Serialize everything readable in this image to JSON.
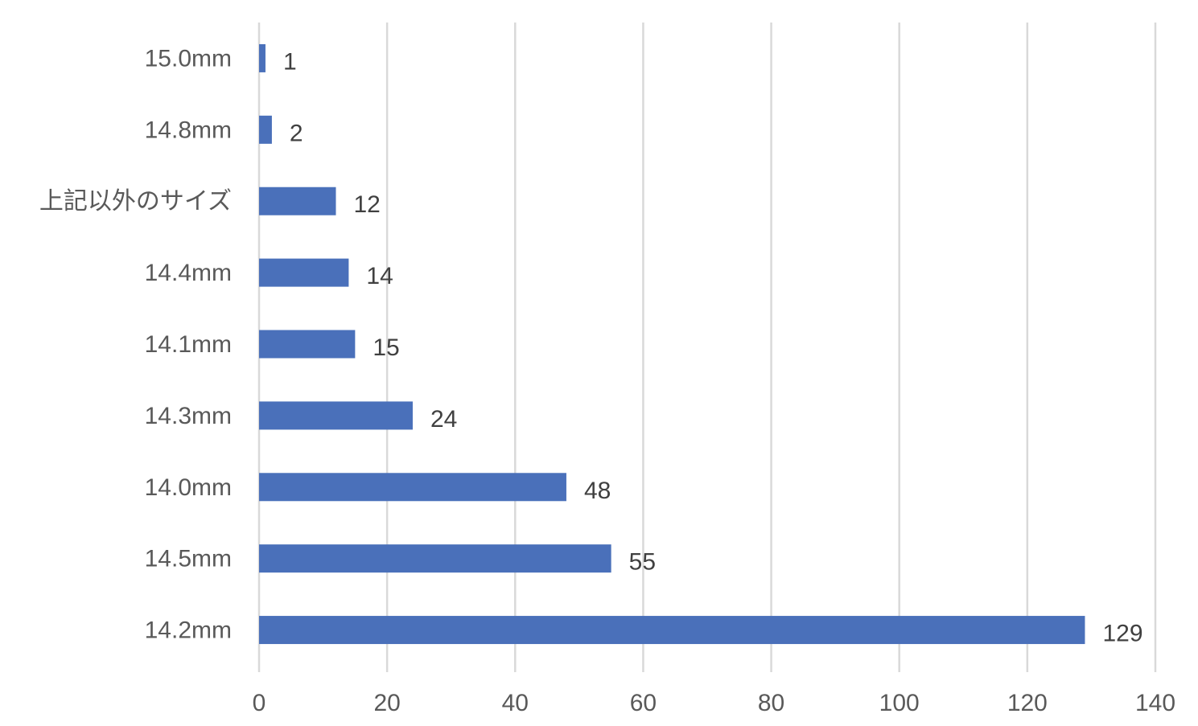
{
  "chart_data": {
    "type": "bar",
    "orientation": "horizontal",
    "title": "",
    "xlabel": "",
    "ylabel": "",
    "categories": [
      "14.2mm",
      "14.5mm",
      "14.0mm",
      "14.3mm",
      "14.1mm",
      "14.4mm",
      "上記以外のサイズ",
      "14.8mm",
      "15.0mm"
    ],
    "values": [
      129,
      55,
      48,
      24,
      15,
      14,
      12,
      2,
      1
    ],
    "xlim": [
      0,
      140
    ],
    "x_ticks": [
      0,
      20,
      40,
      60,
      80,
      100,
      120,
      140
    ],
    "grid": true,
    "legend": "none",
    "bar_color": "#4a70ba",
    "data_labels": true
  }
}
